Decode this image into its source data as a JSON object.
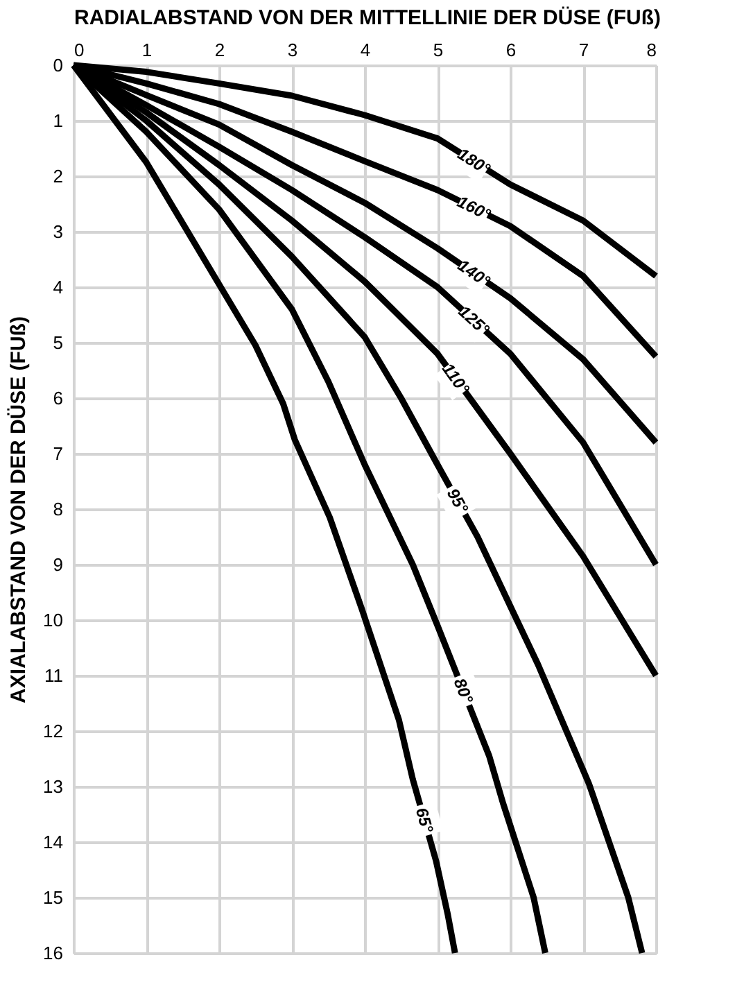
{
  "chart_data": {
    "type": "line",
    "xlabel": "RADIALABSTAND VON DER MITTELLINIE DER DÜSE (FUß)",
    "ylabel": "AXIALABSTAND VON DER DÜSE (FUß)",
    "xlim": [
      0,
      8
    ],
    "ylim": [
      16,
      0
    ],
    "xticks": [
      0,
      1,
      2,
      3,
      4,
      5,
      6,
      7,
      8
    ],
    "yticks": [
      0,
      1,
      2,
      3,
      4,
      5,
      6,
      7,
      8,
      9,
      10,
      11,
      12,
      13,
      14,
      15,
      16
    ],
    "grid": true,
    "legend": false,
    "marker": "none",
    "line_style": "solid",
    "series": [
      {
        "name": "180°",
        "color": "#000000",
        "x": [
          0,
          1,
          2,
          3,
          4,
          5,
          6,
          7,
          8
        ],
        "values": [
          0,
          0.12,
          0.33,
          0.55,
          0.9,
          1.32,
          2.15,
          2.8,
          3.8
        ]
      },
      {
        "name": "160°",
        "color": "#000000",
        "x": [
          0,
          1,
          2,
          3,
          4,
          5,
          6,
          7,
          8
        ],
        "values": [
          0,
          0.33,
          0.7,
          1.2,
          1.73,
          2.25,
          2.9,
          3.8,
          5.25
        ]
      },
      {
        "name": "140°",
        "color": "#000000",
        "x": [
          0,
          1,
          2,
          3,
          4,
          5,
          6,
          7,
          8
        ],
        "values": [
          0,
          0.54,
          1.07,
          1.8,
          2.48,
          3.3,
          4.2,
          5.3,
          6.8
        ]
      },
      {
        "name": "125°",
        "color": "#000000",
        "x": [
          0,
          1,
          2,
          3,
          4,
          5,
          6,
          7,
          8
        ],
        "values": [
          0,
          0.72,
          1.47,
          2.25,
          3.1,
          4.0,
          5.2,
          6.8,
          9.0
        ]
      },
      {
        "name": "110°",
        "color": "#000000",
        "x": [
          0,
          1,
          2,
          3,
          4,
          5,
          5.5,
          6,
          7,
          8
        ],
        "values": [
          0,
          0.85,
          1.8,
          2.8,
          3.9,
          5.2,
          6.1,
          7.0,
          8.85,
          11.0
        ]
      },
      {
        "name": "95°",
        "color": "#000000",
        "x": [
          0,
          1,
          2,
          3,
          4,
          4.5,
          5,
          5.55,
          6,
          6.38,
          7.08,
          7.62,
          7.81
        ],
        "values": [
          0,
          1.0,
          2.15,
          3.45,
          4.9,
          6.0,
          7.2,
          8.5,
          9.75,
          10.8,
          12.95,
          15.0,
          16.0
        ]
      },
      {
        "name": "80°",
        "color": "#000000",
        "x": [
          0,
          1,
          2,
          3,
          3.5,
          4,
          4.66,
          5,
          5.71,
          5.9,
          6.32,
          6.48
        ],
        "values": [
          0,
          1.2,
          2.6,
          4.4,
          5.7,
          7.2,
          9.0,
          10.1,
          12.45,
          13.3,
          15.0,
          16.0
        ]
      },
      {
        "name": "65°",
        "color": "#000000",
        "x": [
          0,
          1,
          2,
          2.5,
          2.88,
          3.04,
          3.52,
          3.96,
          4.47,
          4.66,
          4.98,
          5.14,
          5.24
        ],
        "values": [
          0,
          1.75,
          3.95,
          5.05,
          6.1,
          6.75,
          8.15,
          9.8,
          11.8,
          12.87,
          14.34,
          15.3,
          16.0
        ]
      }
    ]
  }
}
